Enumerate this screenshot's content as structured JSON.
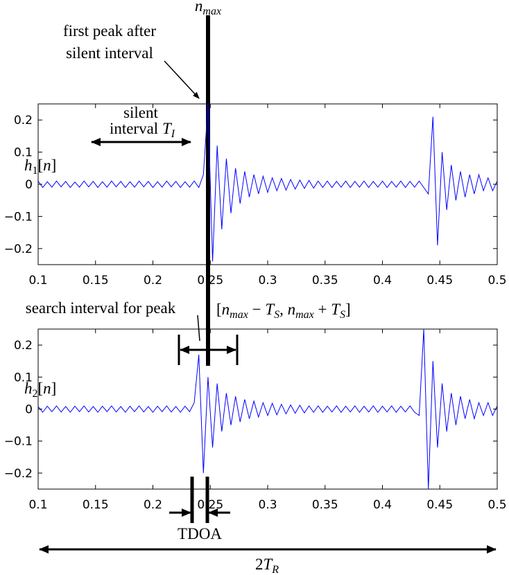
{
  "chart_data": [
    {
      "type": "line",
      "x": [
        0.1,
        0.104,
        0.108,
        0.112,
        0.116,
        0.12,
        0.124,
        0.128,
        0.132,
        0.136,
        0.14,
        0.144,
        0.148,
        0.152,
        0.156,
        0.16,
        0.164,
        0.168,
        0.172,
        0.176,
        0.18,
        0.184,
        0.188,
        0.192,
        0.196,
        0.2,
        0.204,
        0.208,
        0.212,
        0.216,
        0.22,
        0.224,
        0.228,
        0.232,
        0.236,
        0.24,
        0.244,
        0.248,
        0.252,
        0.256,
        0.26,
        0.264,
        0.268,
        0.272,
        0.276,
        0.28,
        0.284,
        0.288,
        0.292,
        0.296,
        0.3,
        0.304,
        0.308,
        0.312,
        0.316,
        0.32,
        0.324,
        0.328,
        0.332,
        0.336,
        0.34,
        0.344,
        0.348,
        0.352,
        0.356,
        0.36,
        0.364,
        0.368,
        0.372,
        0.376,
        0.38,
        0.384,
        0.388,
        0.392,
        0.396,
        0.4,
        0.404,
        0.408,
        0.412,
        0.416,
        0.42,
        0.424,
        0.428,
        0.432,
        0.436,
        0.44,
        0.444,
        0.448,
        0.452,
        0.456,
        0.46,
        0.464,
        0.468,
        0.472,
        0.476,
        0.48,
        0.484,
        0.488,
        0.492,
        0.496,
        0.5
      ],
      "series": [
        {
          "name": "h1",
          "color": "#0000ff",
          "values": [
            0.01,
            -0.01,
            0.008,
            -0.009,
            0.01,
            -0.008,
            0.009,
            -0.01,
            0.007,
            -0.009,
            0.01,
            -0.008,
            0.009,
            -0.01,
            0.008,
            -0.009,
            0.01,
            -0.008,
            0.009,
            -0.01,
            0.008,
            -0.009,
            0.01,
            -0.008,
            0.009,
            -0.01,
            0.008,
            -0.009,
            0.01,
            -0.008,
            0.009,
            -0.01,
            0.008,
            -0.009,
            0.01,
            -0.01,
            0.03,
            0.25,
            -0.24,
            0.12,
            -0.14,
            0.08,
            -0.09,
            0.05,
            -0.06,
            0.04,
            -0.04,
            0.03,
            -0.03,
            0.025,
            -0.025,
            0.02,
            -0.02,
            0.018,
            -0.018,
            0.015,
            -0.015,
            0.013,
            -0.013,
            0.012,
            -0.012,
            0.01,
            -0.01,
            0.01,
            -0.01,
            0.009,
            -0.009,
            0.01,
            -0.01,
            0.009,
            -0.009,
            0.01,
            -0.01,
            0.009,
            -0.009,
            0.01,
            -0.01,
            0.009,
            -0.009,
            0.01,
            -0.01,
            0.009,
            -0.009,
            0.01,
            -0.01,
            -0.03,
            0.21,
            -0.19,
            0.1,
            -0.08,
            0.06,
            -0.05,
            0.04,
            -0.04,
            0.03,
            -0.03,
            0.03,
            -0.02,
            0.02,
            -0.02,
            0.01
          ]
        }
      ],
      "xlim": [
        0.1,
        0.5
      ],
      "ylim": [
        -0.25,
        0.25
      ],
      "xticks": [
        0.1,
        0.15,
        0.2,
        0.25,
        0.3,
        0.35,
        0.4,
        0.45,
        0.5
      ],
      "yticks": [
        {
          "value": -0.2,
          "label": "−0.2"
        },
        {
          "value": -0.1,
          "label": "−0.1"
        },
        0,
        0.1,
        0.2
      ]
    },
    {
      "type": "line",
      "x": [
        0.1,
        0.104,
        0.108,
        0.112,
        0.116,
        0.12,
        0.124,
        0.128,
        0.132,
        0.136,
        0.14,
        0.144,
        0.148,
        0.152,
        0.156,
        0.16,
        0.164,
        0.168,
        0.172,
        0.176,
        0.18,
        0.184,
        0.188,
        0.192,
        0.196,
        0.2,
        0.204,
        0.208,
        0.212,
        0.216,
        0.22,
        0.224,
        0.228,
        0.232,
        0.236,
        0.24,
        0.244,
        0.248,
        0.252,
        0.256,
        0.26,
        0.264,
        0.268,
        0.272,
        0.276,
        0.28,
        0.284,
        0.288,
        0.292,
        0.296,
        0.3,
        0.304,
        0.308,
        0.312,
        0.316,
        0.32,
        0.324,
        0.328,
        0.332,
        0.336,
        0.34,
        0.344,
        0.348,
        0.352,
        0.356,
        0.36,
        0.364,
        0.368,
        0.372,
        0.376,
        0.38,
        0.384,
        0.388,
        0.392,
        0.396,
        0.4,
        0.404,
        0.408,
        0.412,
        0.416,
        0.42,
        0.424,
        0.428,
        0.432,
        0.436,
        0.44,
        0.444,
        0.448,
        0.452,
        0.456,
        0.46,
        0.464,
        0.468,
        0.472,
        0.476,
        0.48,
        0.484,
        0.488,
        0.492,
        0.496,
        0.5
      ],
      "series": [
        {
          "name": "h2",
          "color": "#0000ff",
          "values": [
            0.008,
            -0.01,
            0.009,
            -0.008,
            0.01,
            -0.009,
            0.008,
            -0.01,
            0.009,
            -0.008,
            0.01,
            -0.009,
            0.008,
            -0.01,
            0.009,
            -0.008,
            0.01,
            -0.009,
            0.008,
            -0.01,
            0.009,
            -0.008,
            0.01,
            -0.009,
            0.008,
            -0.01,
            0.009,
            -0.008,
            0.01,
            -0.009,
            0.008,
            -0.01,
            0.009,
            -0.008,
            0.02,
            0.17,
            -0.2,
            0.1,
            -0.12,
            0.08,
            -0.07,
            0.05,
            -0.05,
            0.04,
            -0.04,
            0.03,
            -0.03,
            0.025,
            -0.025,
            0.02,
            -0.02,
            0.018,
            -0.018,
            0.015,
            -0.015,
            0.013,
            -0.013,
            0.012,
            -0.012,
            0.01,
            -0.01,
            0.01,
            -0.01,
            0.009,
            -0.009,
            0.01,
            -0.01,
            0.009,
            -0.009,
            0.01,
            -0.01,
            0.009,
            -0.009,
            0.01,
            -0.01,
            0.009,
            -0.009,
            0.01,
            -0.01,
            0.009,
            -0.009,
            0.01,
            -0.01,
            -0.02,
            0.25,
            -0.25,
            0.15,
            -0.12,
            0.08,
            -0.07,
            0.05,
            -0.05,
            0.04,
            -0.03,
            0.03,
            -0.03,
            0.02,
            -0.02,
            0.02,
            -0.02,
            0.01
          ]
        }
      ],
      "xlim": [
        0.1,
        0.5
      ],
      "ylim": [
        -0.25,
        0.25
      ],
      "xticks": [
        0.1,
        0.15,
        0.2,
        0.25,
        0.3,
        0.35,
        0.4,
        0.45,
        0.5
      ],
      "yticks": [
        {
          "value": -0.2,
          "label": "−0.2"
        },
        {
          "value": -0.1,
          "label": "−0.1"
        },
        0,
        0.1,
        0.2
      ]
    }
  ],
  "annotations": [
    {
      "runs": [
        {
          "text": "n",
          "style": "i"
        },
        {
          "text": "max",
          "style": "isub"
        }
      ]
    },
    {
      "runs": [
        {
          "text": "first peak after",
          "style": "r"
        }
      ]
    },
    {
      "runs": [
        {
          "text": "silent interval",
          "style": "r"
        }
      ]
    },
    {
      "runs": [
        {
          "text": "silent",
          "style": "r"
        }
      ]
    },
    {
      "runs": [
        {
          "text": "interval ",
          "style": "r"
        },
        {
          "text": "T",
          "style": "i"
        },
        {
          "text": "I",
          "style": "isub"
        }
      ]
    },
    {
      "runs": [
        {
          "text": "h",
          "style": "i"
        },
        {
          "text": "1",
          "style": "sub"
        },
        {
          "text": "[",
          "style": "r"
        },
        {
          "text": "n",
          "style": "i"
        },
        {
          "text": "]",
          "style": "r"
        }
      ]
    },
    {
      "runs": [
        {
          "text": "search interval for peak",
          "style": "r"
        }
      ]
    },
    {
      "runs": [
        {
          "text": "[",
          "style": "r"
        },
        {
          "text": "n",
          "style": "i"
        },
        {
          "text": "max",
          "style": "isub"
        },
        {
          "text": " − ",
          "style": "r"
        },
        {
          "text": "T",
          "style": "i"
        },
        {
          "text": "S",
          "style": "isub"
        },
        {
          "text": ", ",
          "style": "r"
        },
        {
          "text": "n",
          "style": "i"
        },
        {
          "text": "max",
          "style": "isub"
        },
        {
          "text": " + ",
          "style": "r"
        },
        {
          "text": "T",
          "style": "i"
        },
        {
          "text": "S",
          "style": "isub"
        },
        {
          "text": "]",
          "style": "r"
        }
      ]
    },
    {
      "runs": [
        {
          "text": "h",
          "style": "i"
        },
        {
          "text": "2",
          "style": "sub"
        },
        {
          "text": "[",
          "style": "r"
        },
        {
          "text": "n",
          "style": "i"
        },
        {
          "text": "]",
          "style": "r"
        }
      ]
    },
    {
      "runs": [
        {
          "text": "TDOA",
          "style": "r"
        }
      ]
    },
    {
      "runs": [
        {
          "text": "2",
          "style": "r"
        },
        {
          "text": "T",
          "style": "i"
        },
        {
          "text": "R",
          "style": "isub"
        }
      ]
    }
  ]
}
